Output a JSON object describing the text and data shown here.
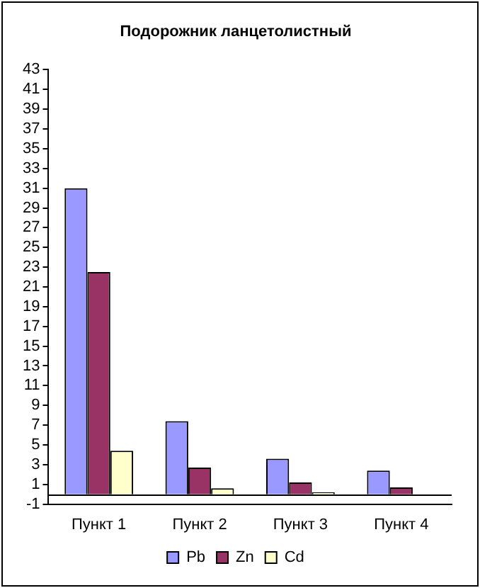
{
  "chart_data": {
    "type": "bar",
    "title": "Подорожник ланцетолистный",
    "categories": [
      "Пункт 1",
      "Пункт 2",
      "Пункт 3",
      "Пункт 4"
    ],
    "series": [
      {
        "name": "Pb",
        "color": "#9999ff",
        "values": [
          31,
          7.4,
          3.6,
          2.4
        ]
      },
      {
        "name": "Zn",
        "color": "#993366",
        "values": [
          22.5,
          2.7,
          1.2,
          0.7
        ]
      },
      {
        "name": "Cd",
        "color": "#ffffcc",
        "values": [
          4.4,
          0.6,
          0.2,
          0
        ]
      }
    ],
    "ylim": [
      -1,
      43
    ],
    "yticks": [
      -1,
      1,
      3,
      5,
      7,
      9,
      11,
      13,
      15,
      17,
      19,
      21,
      23,
      25,
      27,
      29,
      31,
      33,
      35,
      37,
      39,
      41,
      43
    ],
    "grid": false,
    "legend": "bottom"
  }
}
